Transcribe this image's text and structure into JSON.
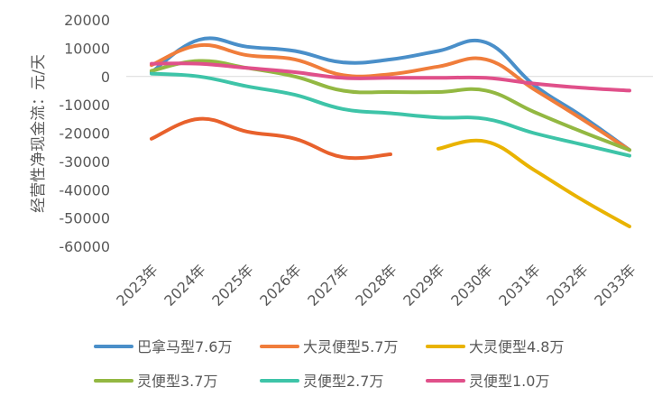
{
  "chart_data": {
    "type": "line",
    "title": "",
    "ylabel": "经营性净现金流：元/天",
    "xlabel": "",
    "ylim": [
      -60000,
      20000
    ],
    "yticks": [
      20000,
      10000,
      0,
      -10000,
      -20000,
      -30000,
      -40000,
      -50000,
      -60000
    ],
    "yticklabels": [
      "20000",
      "10000",
      "0",
      "-10000",
      "-20000",
      "-30000",
      "-40000",
      "-50000",
      "-60000"
    ],
    "categories": [
      "2023年",
      "2024年",
      "2025年",
      "2026年",
      "2027年",
      "2028年",
      "2029年",
      "2030年",
      "2031年",
      "2032年",
      "2033年"
    ],
    "grid": false,
    "legend_position": "bottom",
    "smooth": true,
    "series": [
      {
        "name": "巴拿马型7.6万",
        "color": "#4a8fc9",
        "values": [
          1500,
          13000,
          10500,
          9000,
          5000,
          6000,
          9000,
          12000,
          -3000,
          -14000,
          -26000
        ]
      },
      {
        "name": "大灵便型5.7万",
        "color": "#f07d3b",
        "values": [
          4000,
          11000,
          7500,
          6000,
          500,
          800,
          3500,
          6000,
          -4500,
          -15000,
          -26000
        ]
      },
      {
        "name": "大灵便型4.8万",
        "color": "#e9b300",
        "values": [
          null,
          null,
          null,
          null,
          null,
          null,
          -25500,
          -23000,
          -33000,
          -43500,
          -53000
        ]
      },
      {
        "name": "",
        "color": "#e8612c",
        "values": [
          -22000,
          -15000,
          -19500,
          -22000,
          -28500,
          -27500,
          null,
          null,
          null,
          null,
          null
        ]
      },
      {
        "name": "灵便型3.7万",
        "color": "#93b842",
        "values": [
          2000,
          5500,
          3000,
          0,
          -5000,
          -5500,
          -5500,
          -5000,
          -12500,
          -19500,
          -26000
        ]
      },
      {
        "name": "灵便型2.7万",
        "color": "#3ec4a8",
        "values": [
          1000,
          0,
          -3500,
          -6500,
          -11500,
          -13000,
          -14500,
          -15000,
          -20000,
          -24000,
          -28000
        ]
      },
      {
        "name": "灵便型1.0万",
        "color": "#e0508a",
        "values": [
          4500,
          4500,
          3000,
          1500,
          -500,
          -500,
          -500,
          -500,
          -2500,
          -4000,
          -5000
        ]
      }
    ]
  }
}
